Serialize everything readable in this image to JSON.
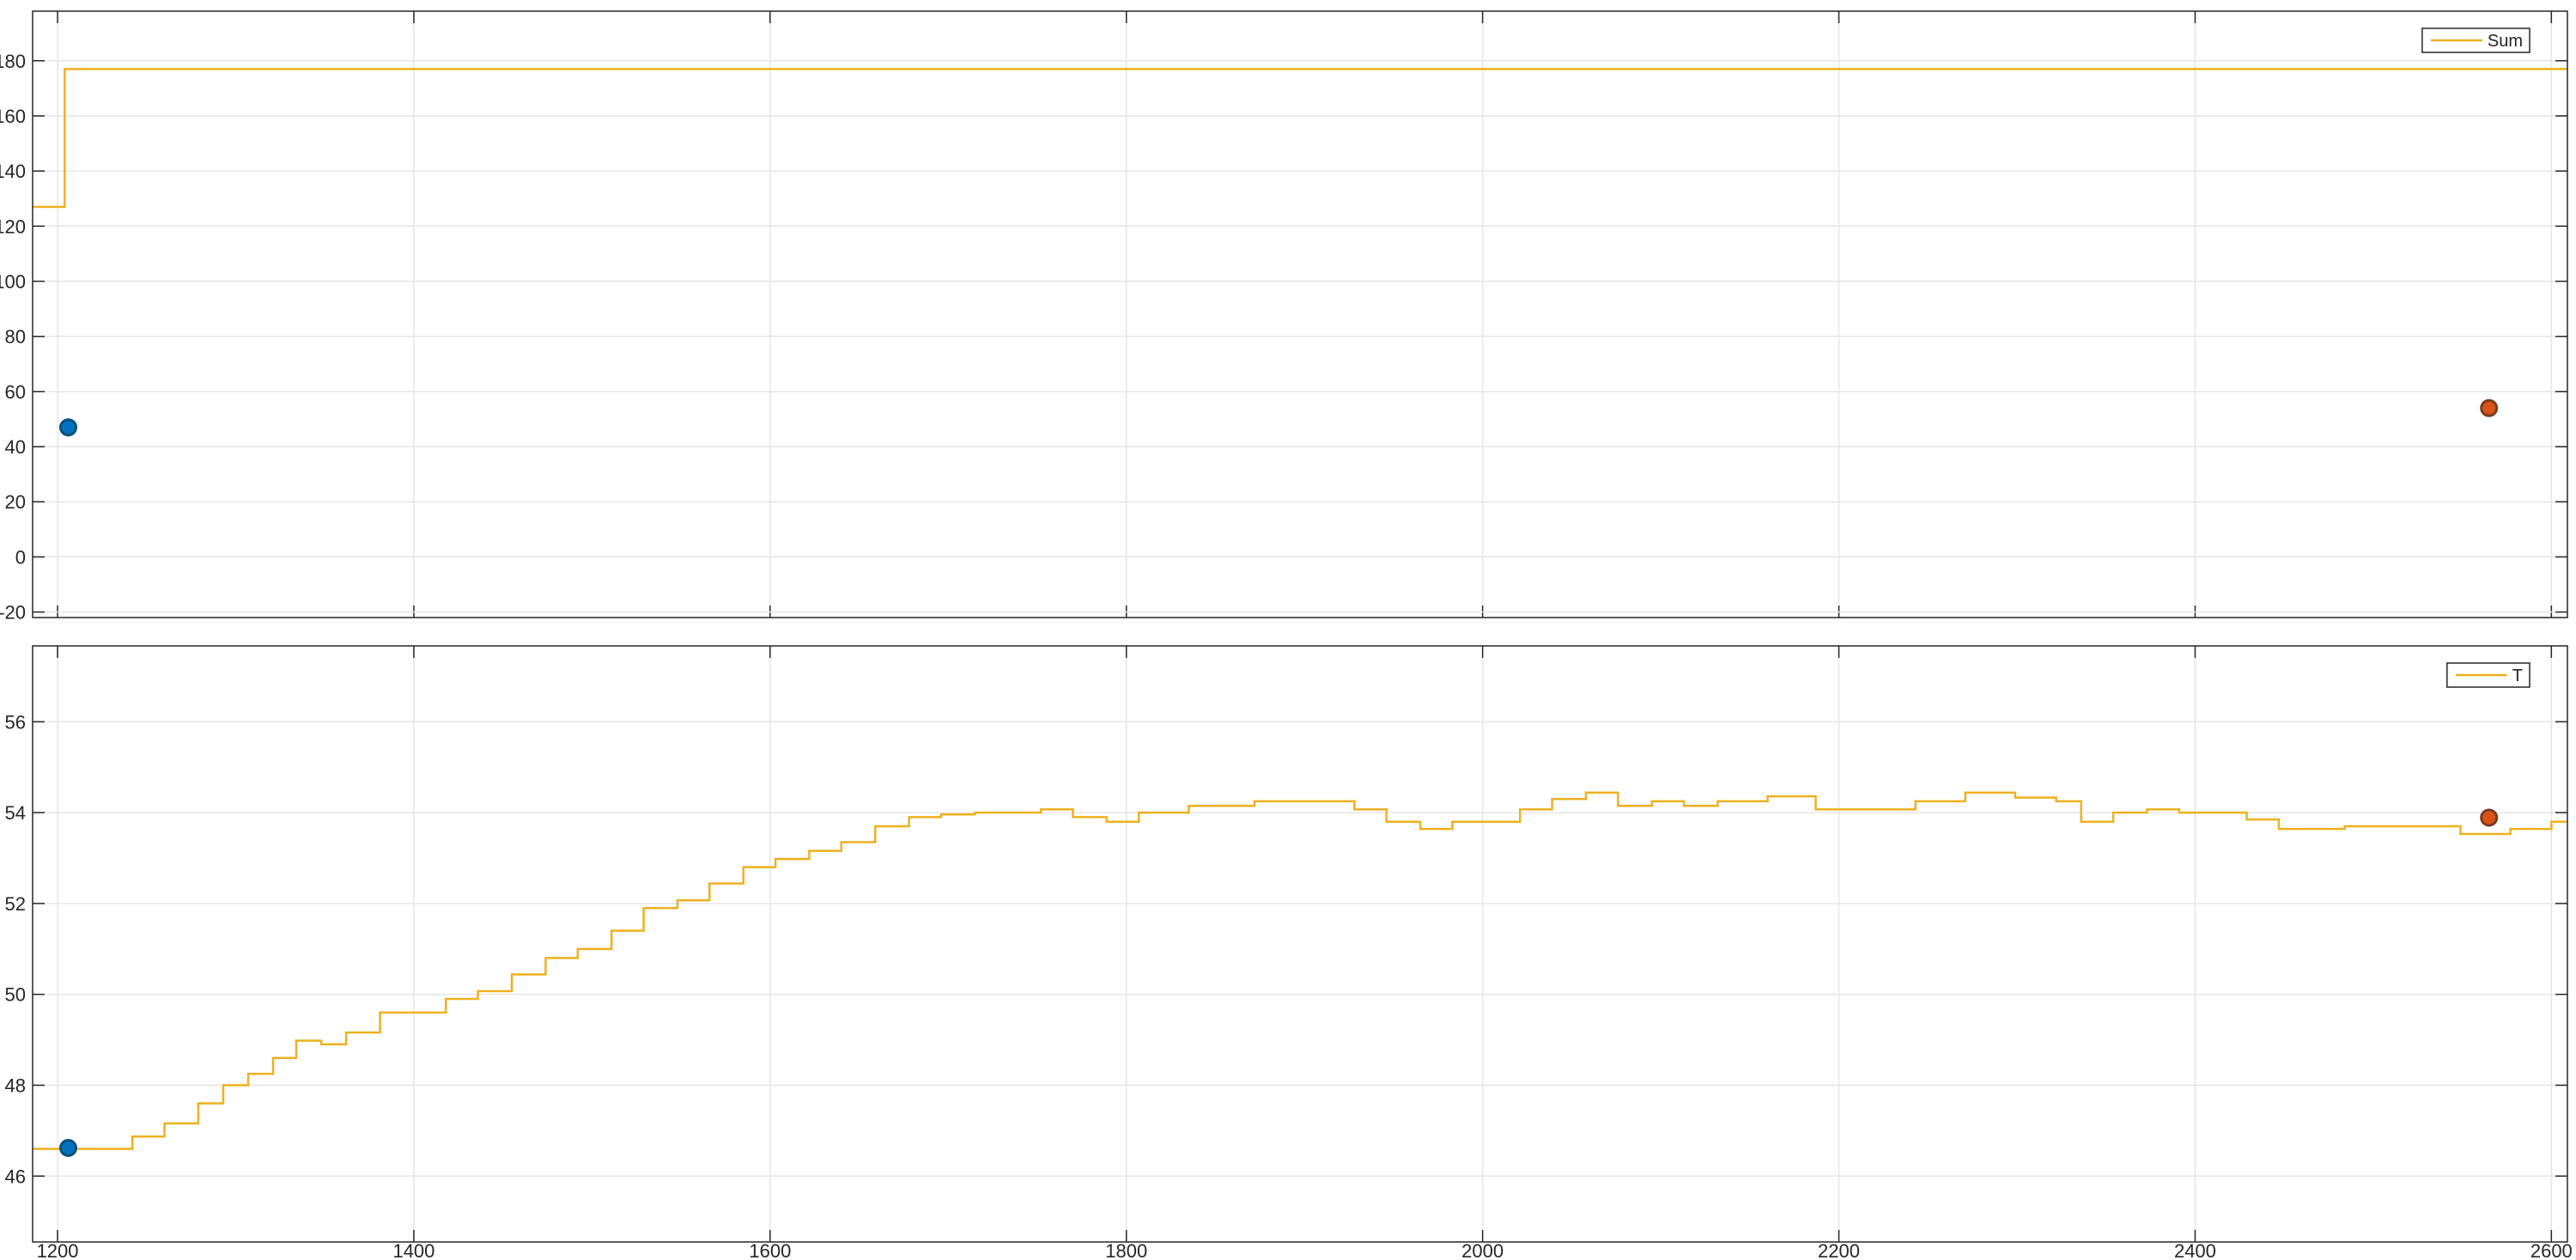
{
  "chart_data": [
    {
      "type": "line",
      "legend": "northeast",
      "grid": true,
      "ylim": [
        -22,
        198
      ],
      "yticks": [
        -20,
        0,
        20,
        40,
        60,
        80,
        100,
        120,
        140,
        160,
        180
      ],
      "series": [
        {
          "name": "Sum",
          "color": "#edb120",
          "step": true,
          "x": [
            1186,
            1204,
            1204,
            2609
          ],
          "values": [
            127,
            127,
            177,
            177
          ]
        }
      ],
      "markers": [
        {
          "x": 1206,
          "y": 47,
          "color": "#0072bd",
          "edge": "#0b4f7a"
        },
        {
          "x": 2565,
          "y": 54,
          "color": "#d95319",
          "edge": "#7a3a22"
        }
      ]
    },
    {
      "type": "line",
      "legend": "northeast",
      "grid": true,
      "xlim": [
        1186,
        2609
      ],
      "xticks": [
        1200,
        1400,
        1600,
        1800,
        2000,
        2200,
        2400,
        2600
      ],
      "ylim": [
        44.55,
        57.67
      ],
      "yticks": [
        46,
        48,
        50,
        52,
        54,
        56
      ],
      "series": [
        {
          "name": "T",
          "color": "#edb120",
          "step": true,
          "x": [
            1186,
            1232,
            1242,
            1260,
            1279,
            1293,
            1307,
            1321,
            1334,
            1348,
            1362,
            1381,
            1399,
            1418,
            1436,
            1455,
            1474,
            1492,
            1511,
            1529,
            1548,
            1566,
            1585,
            1603,
            1622,
            1640,
            1659,
            1678,
            1696,
            1715,
            1733,
            1752,
            1770,
            1789,
            1807,
            1835,
            1872,
            1909,
            1928,
            1946,
            1965,
            1983,
            2002,
            2021,
            2039,
            2058,
            2076,
            2095,
            2113,
            2132,
            2160,
            2187,
            2215,
            2243,
            2271,
            2299,
            2322,
            2336,
            2354,
            2373,
            2391,
            2410,
            2429,
            2447,
            2484,
            2531,
            2549,
            2577,
            2600,
            2609
          ],
          "values": [
            46.6,
            46.6,
            46.87,
            47.16,
            47.6,
            48.0,
            48.25,
            48.6,
            48.98,
            48.9,
            49.16,
            49.6,
            49.6,
            49.9,
            50.07,
            50.44,
            50.8,
            51.0,
            51.4,
            51.9,
            52.07,
            52.44,
            52.8,
            52.98,
            53.16,
            53.35,
            53.7,
            53.9,
            53.96,
            54.0,
            54.0,
            54.07,
            53.9,
            53.8,
            54.0,
            54.15,
            54.25,
            54.25,
            54.07,
            53.8,
            53.64,
            53.8,
            53.8,
            54.07,
            54.3,
            54.44,
            54.15,
            54.25,
            54.15,
            54.25,
            54.36,
            54.07,
            54.07,
            54.25,
            54.44,
            54.33,
            54.25,
            53.8,
            54.0,
            54.07,
            54.0,
            54.0,
            53.85,
            53.64,
            53.7,
            53.7,
            53.53,
            53.64,
            53.8,
            53.8
          ]
        }
      ],
      "markers": [
        {
          "x": 1206,
          "y": 46.62,
          "color": "#0072bd",
          "edge": "#0b4f7a"
        },
        {
          "x": 2565,
          "y": 53.89,
          "color": "#d95319",
          "edge": "#7a3a22"
        }
      ]
    }
  ]
}
